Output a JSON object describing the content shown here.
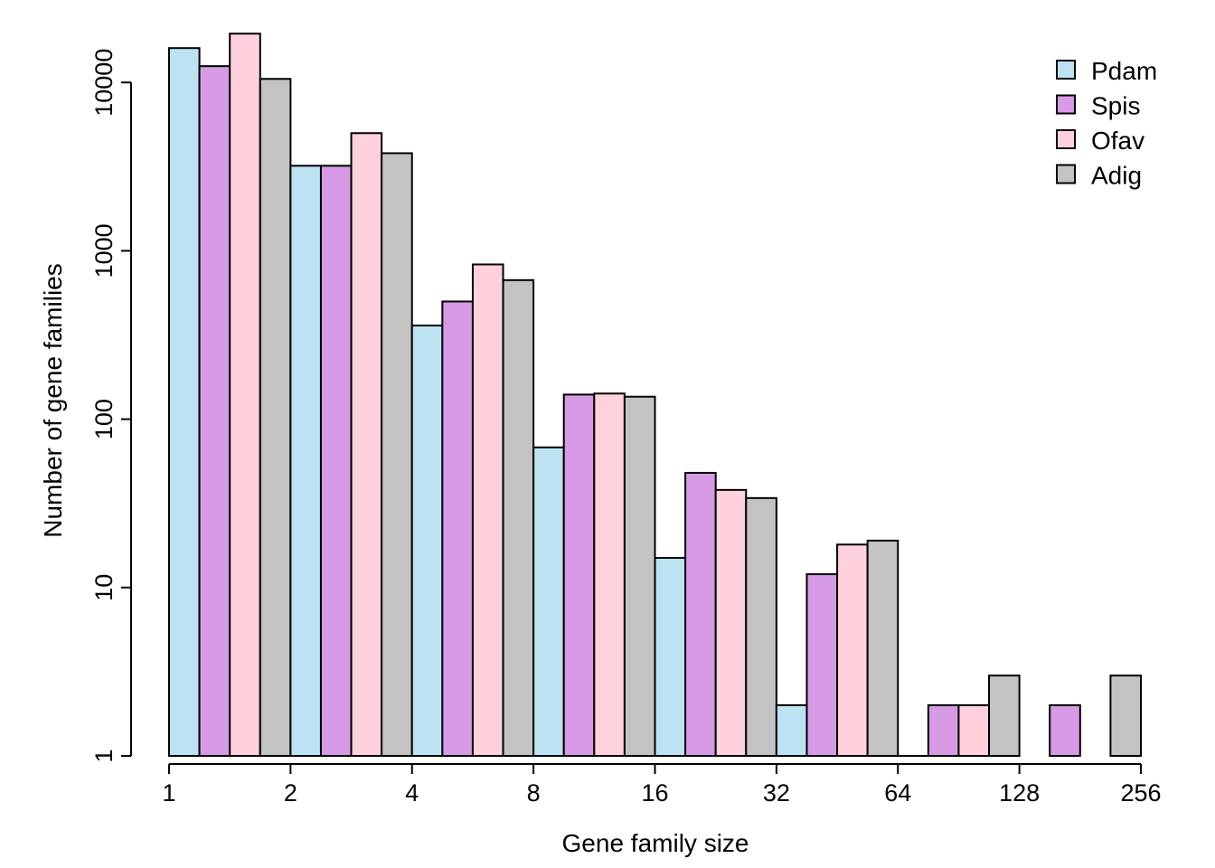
{
  "chart_data": {
    "type": "bar",
    "title": "",
    "xlabel": "Gene family size",
    "ylabel": "Number of gene families",
    "x_scale": "log2",
    "y_scale": "log10",
    "xlim": [
      1,
      256
    ],
    "ylim": [
      1,
      20000
    ],
    "x_ticks": [
      "1",
      "2",
      "4",
      "8",
      "16",
      "32",
      "64",
      "128",
      "256"
    ],
    "y_ticks": [
      "1",
      "10",
      "100",
      "1000",
      "10000"
    ],
    "bins": [
      [
        1,
        2
      ],
      [
        2,
        4
      ],
      [
        4,
        8
      ],
      [
        8,
        16
      ],
      [
        16,
        32
      ],
      [
        32,
        64
      ],
      [
        64,
        128
      ],
      [
        128,
        256
      ]
    ],
    "series": [
      {
        "name": "Pdam",
        "color": "#bde2f2",
        "values": [
          16000,
          3200,
          360,
          68,
          15,
          2,
          0,
          0
        ]
      },
      {
        "name": "Spis",
        "color": "#d69be4",
        "values": [
          12500,
          3200,
          500,
          140,
          48,
          12,
          2,
          2
        ]
      },
      {
        "name": "Ofav",
        "color": "#ffd1dc",
        "values": [
          19500,
          5000,
          830,
          142,
          38,
          18,
          2,
          0
        ]
      },
      {
        "name": "Adig",
        "color": "#c3c3c3",
        "values": [
          10500,
          3800,
          670,
          136,
          34,
          19,
          3,
          3
        ]
      }
    ],
    "legend_position": "top-right",
    "grid": false
  }
}
